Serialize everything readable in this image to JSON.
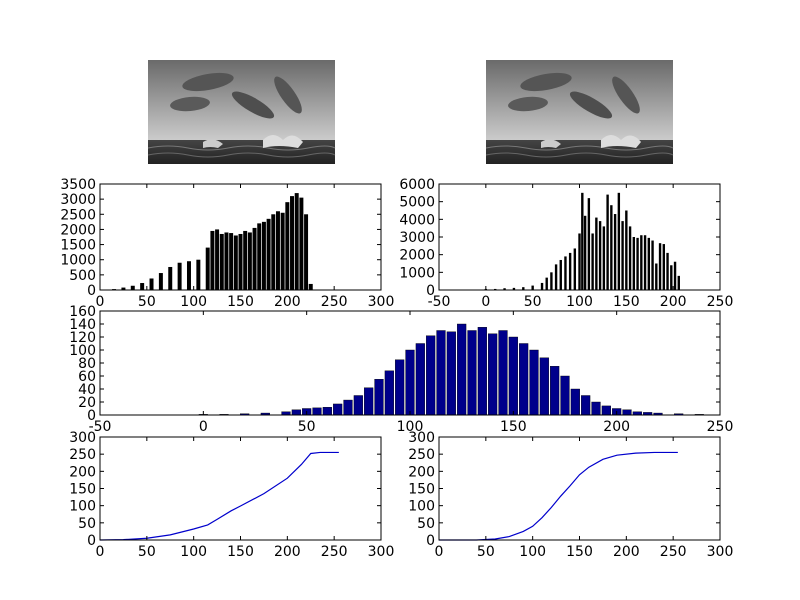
{
  "images": [
    {
      "name": "original-image",
      "icon": "dolphins-grayscale-photo"
    },
    {
      "name": "equalized-image",
      "icon": "dolphins-grayscale-photo"
    }
  ],
  "chart_data": [
    {
      "id": "hist-original",
      "type": "bar",
      "title": "",
      "xlabel": "",
      "ylabel": "",
      "xlim": [
        0,
        300
      ],
      "ylim": [
        0,
        3500
      ],
      "xticks": [
        0,
        50,
        100,
        150,
        200,
        250,
        300
      ],
      "yticks": [
        0,
        500,
        1000,
        1500,
        2000,
        2500,
        3000,
        3500
      ],
      "color": "#000000",
      "x": [
        5,
        15,
        25,
        35,
        45,
        55,
        65,
        75,
        85,
        95,
        105,
        115,
        120,
        125,
        130,
        135,
        140,
        145,
        150,
        155,
        160,
        165,
        170,
        175,
        180,
        185,
        190,
        195,
        200,
        205,
        210,
        215,
        220,
        225
      ],
      "values": [
        0,
        30,
        80,
        140,
        230,
        380,
        560,
        760,
        900,
        950,
        1000,
        1400,
        1950,
        2000,
        1850,
        1900,
        1880,
        1800,
        1850,
        1950,
        1900,
        2050,
        2200,
        2250,
        2350,
        2500,
        2600,
        2550,
        2900,
        3100,
        3200,
        3050,
        2500,
        200
      ]
    },
    {
      "id": "hist-equalized",
      "type": "bar",
      "title": "",
      "xlabel": "",
      "ylabel": "",
      "xlim": [
        -50,
        250
      ],
      "ylim": [
        0,
        6000
      ],
      "xticks": [
        -50,
        0,
        50,
        100,
        150,
        200,
        250
      ],
      "yticks": [
        0,
        1000,
        2000,
        3000,
        4000,
        5000,
        6000
      ],
      "color": "#000000",
      "x": [
        0,
        10,
        20,
        30,
        40,
        50,
        60,
        65,
        70,
        75,
        80,
        85,
        90,
        95,
        100,
        103,
        106,
        110,
        114,
        118,
        122,
        126,
        130,
        134,
        138,
        142,
        146,
        150,
        154,
        158,
        162,
        166,
        170,
        174,
        178,
        182,
        186,
        190,
        194,
        198,
        202,
        206
      ],
      "values": [
        60,
        60,
        100,
        120,
        160,
        250,
        400,
        700,
        1000,
        1450,
        1700,
        1900,
        2100,
        2350,
        3200,
        5500,
        4200,
        5200,
        3200,
        4100,
        3900,
        3600,
        5400,
        4800,
        4300,
        5500,
        3900,
        4500,
        3600,
        3000,
        2950,
        3100,
        3100,
        2950,
        2800,
        1500,
        2650,
        2600,
        2100,
        1400,
        1600,
        800
      ]
    },
    {
      "id": "hist-detail",
      "type": "bar",
      "title": "",
      "xlabel": "",
      "ylabel": "",
      "xlim": [
        -50,
        250
      ],
      "ylim": [
        0,
        160
      ],
      "xticks": [
        -50,
        0,
        50,
        100,
        150,
        200,
        250
      ],
      "yticks": [
        0,
        20,
        40,
        60,
        80,
        100,
        120,
        140,
        160
      ],
      "color": "#00008b",
      "x": [
        0,
        10,
        20,
        30,
        40,
        45,
        50,
        55,
        60,
        65,
        70,
        75,
        80,
        85,
        90,
        95,
        100,
        105,
        110,
        115,
        120,
        125,
        130,
        135,
        140,
        145,
        150,
        155,
        160,
        165,
        170,
        175,
        180,
        185,
        190,
        195,
        200,
        205,
        210,
        215,
        220,
        230,
        240
      ],
      "values": [
        1,
        1,
        2,
        3,
        5,
        8,
        10,
        11,
        12,
        17,
        23,
        30,
        42,
        55,
        68,
        85,
        100,
        110,
        122,
        130,
        128,
        140,
        130,
        135,
        125,
        130,
        120,
        110,
        100,
        88,
        75,
        60,
        40,
        30,
        20,
        14,
        10,
        8,
        5,
        4,
        3,
        2,
        1
      ]
    },
    {
      "id": "cdf-original",
      "type": "line",
      "title": "",
      "xlabel": "",
      "ylabel": "",
      "xlim": [
        0,
        300
      ],
      "ylim": [
        0,
        300
      ],
      "xticks": [
        0,
        50,
        100,
        150,
        200,
        250,
        300
      ],
      "yticks": [
        0,
        50,
        100,
        150,
        200,
        250,
        300
      ],
      "color": "#0000cc",
      "x": [
        0,
        25,
        50,
        75,
        100,
        115,
        125,
        140,
        150,
        175,
        200,
        215,
        225,
        235,
        255
      ],
      "values": [
        0,
        1,
        5,
        15,
        32,
        44,
        60,
        85,
        99,
        135,
        180,
        220,
        252,
        255,
        255
      ]
    },
    {
      "id": "cdf-equalized",
      "type": "line",
      "title": "",
      "xlabel": "",
      "ylabel": "",
      "xlim": [
        0,
        300
      ],
      "ylim": [
        0,
        300
      ],
      "xticks": [
        0,
        50,
        100,
        150,
        200,
        250,
        300
      ],
      "yticks": [
        0,
        50,
        100,
        150,
        200,
        250,
        300
      ],
      "color": "#0000cc",
      "x": [
        0,
        40,
        60,
        75,
        90,
        100,
        110,
        120,
        130,
        140,
        150,
        160,
        175,
        190,
        210,
        230,
        255
      ],
      "values": [
        0,
        0,
        3,
        10,
        25,
        40,
        65,
        95,
        128,
        158,
        190,
        212,
        235,
        247,
        253,
        255,
        255
      ]
    }
  ]
}
